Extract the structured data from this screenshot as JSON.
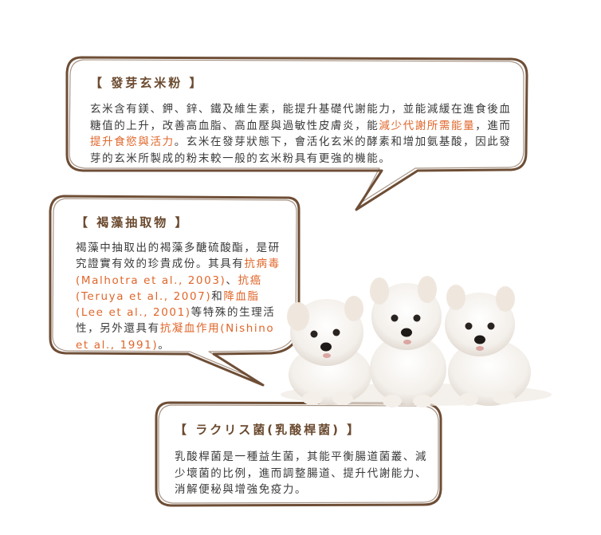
{
  "panels": {
    "brown_rice": {
      "title": "【 發芽玄米粉 】",
      "t1": "玄米含有鎂、鉀、鋅、鐵及維生素，能提升基礎代謝能力，並能減緩在進食後血糖值的上升，改善高血脂、高血壓與過敏性皮膚炎，能",
      "h1": "減少代謝所需能量",
      "t2": "，進而",
      "h2": "提升食慾與活力",
      "t3": "。玄米在發芽狀態下，會活化玄米的酵素和增加氨基酸，因此發芽的玄米所製成的粉末較一般的玄米粉具有更強的機能。"
    },
    "seaweed": {
      "title": "【 褐藻抽取物 】",
      "t1": "褐藻中抽取出的褐藻多醣硫酸酯，是研究證實有效的珍貴成份。其具有",
      "h1": "抗病毒",
      "t2": "(Malhotra et al., 2003)、",
      "h2": "抗癌",
      "t3": "(Teruya et al., 2007)和",
      "h3": "降血脂",
      "t4": "(Lee et al., 2001)等特殊的生理活性，另外還具有",
      "h4": "抗凝血作用",
      "t5": "(Nishino et al., 1991)。"
    },
    "lactobacillus": {
      "title": "【 ラクリス菌(乳酸桿菌) 】",
      "body": "乳酸桿菌是一種益生菌，其能平衡腸道菌叢、減少壞菌的比例，進而調整腸道、提升代謝能力、消解便秘與增強免疫力。"
    }
  },
  "colors": {
    "border": "#6e4e36",
    "heading": "#6b4a2f",
    "text": "#3a3a3a",
    "highlight": "#e0662a"
  }
}
